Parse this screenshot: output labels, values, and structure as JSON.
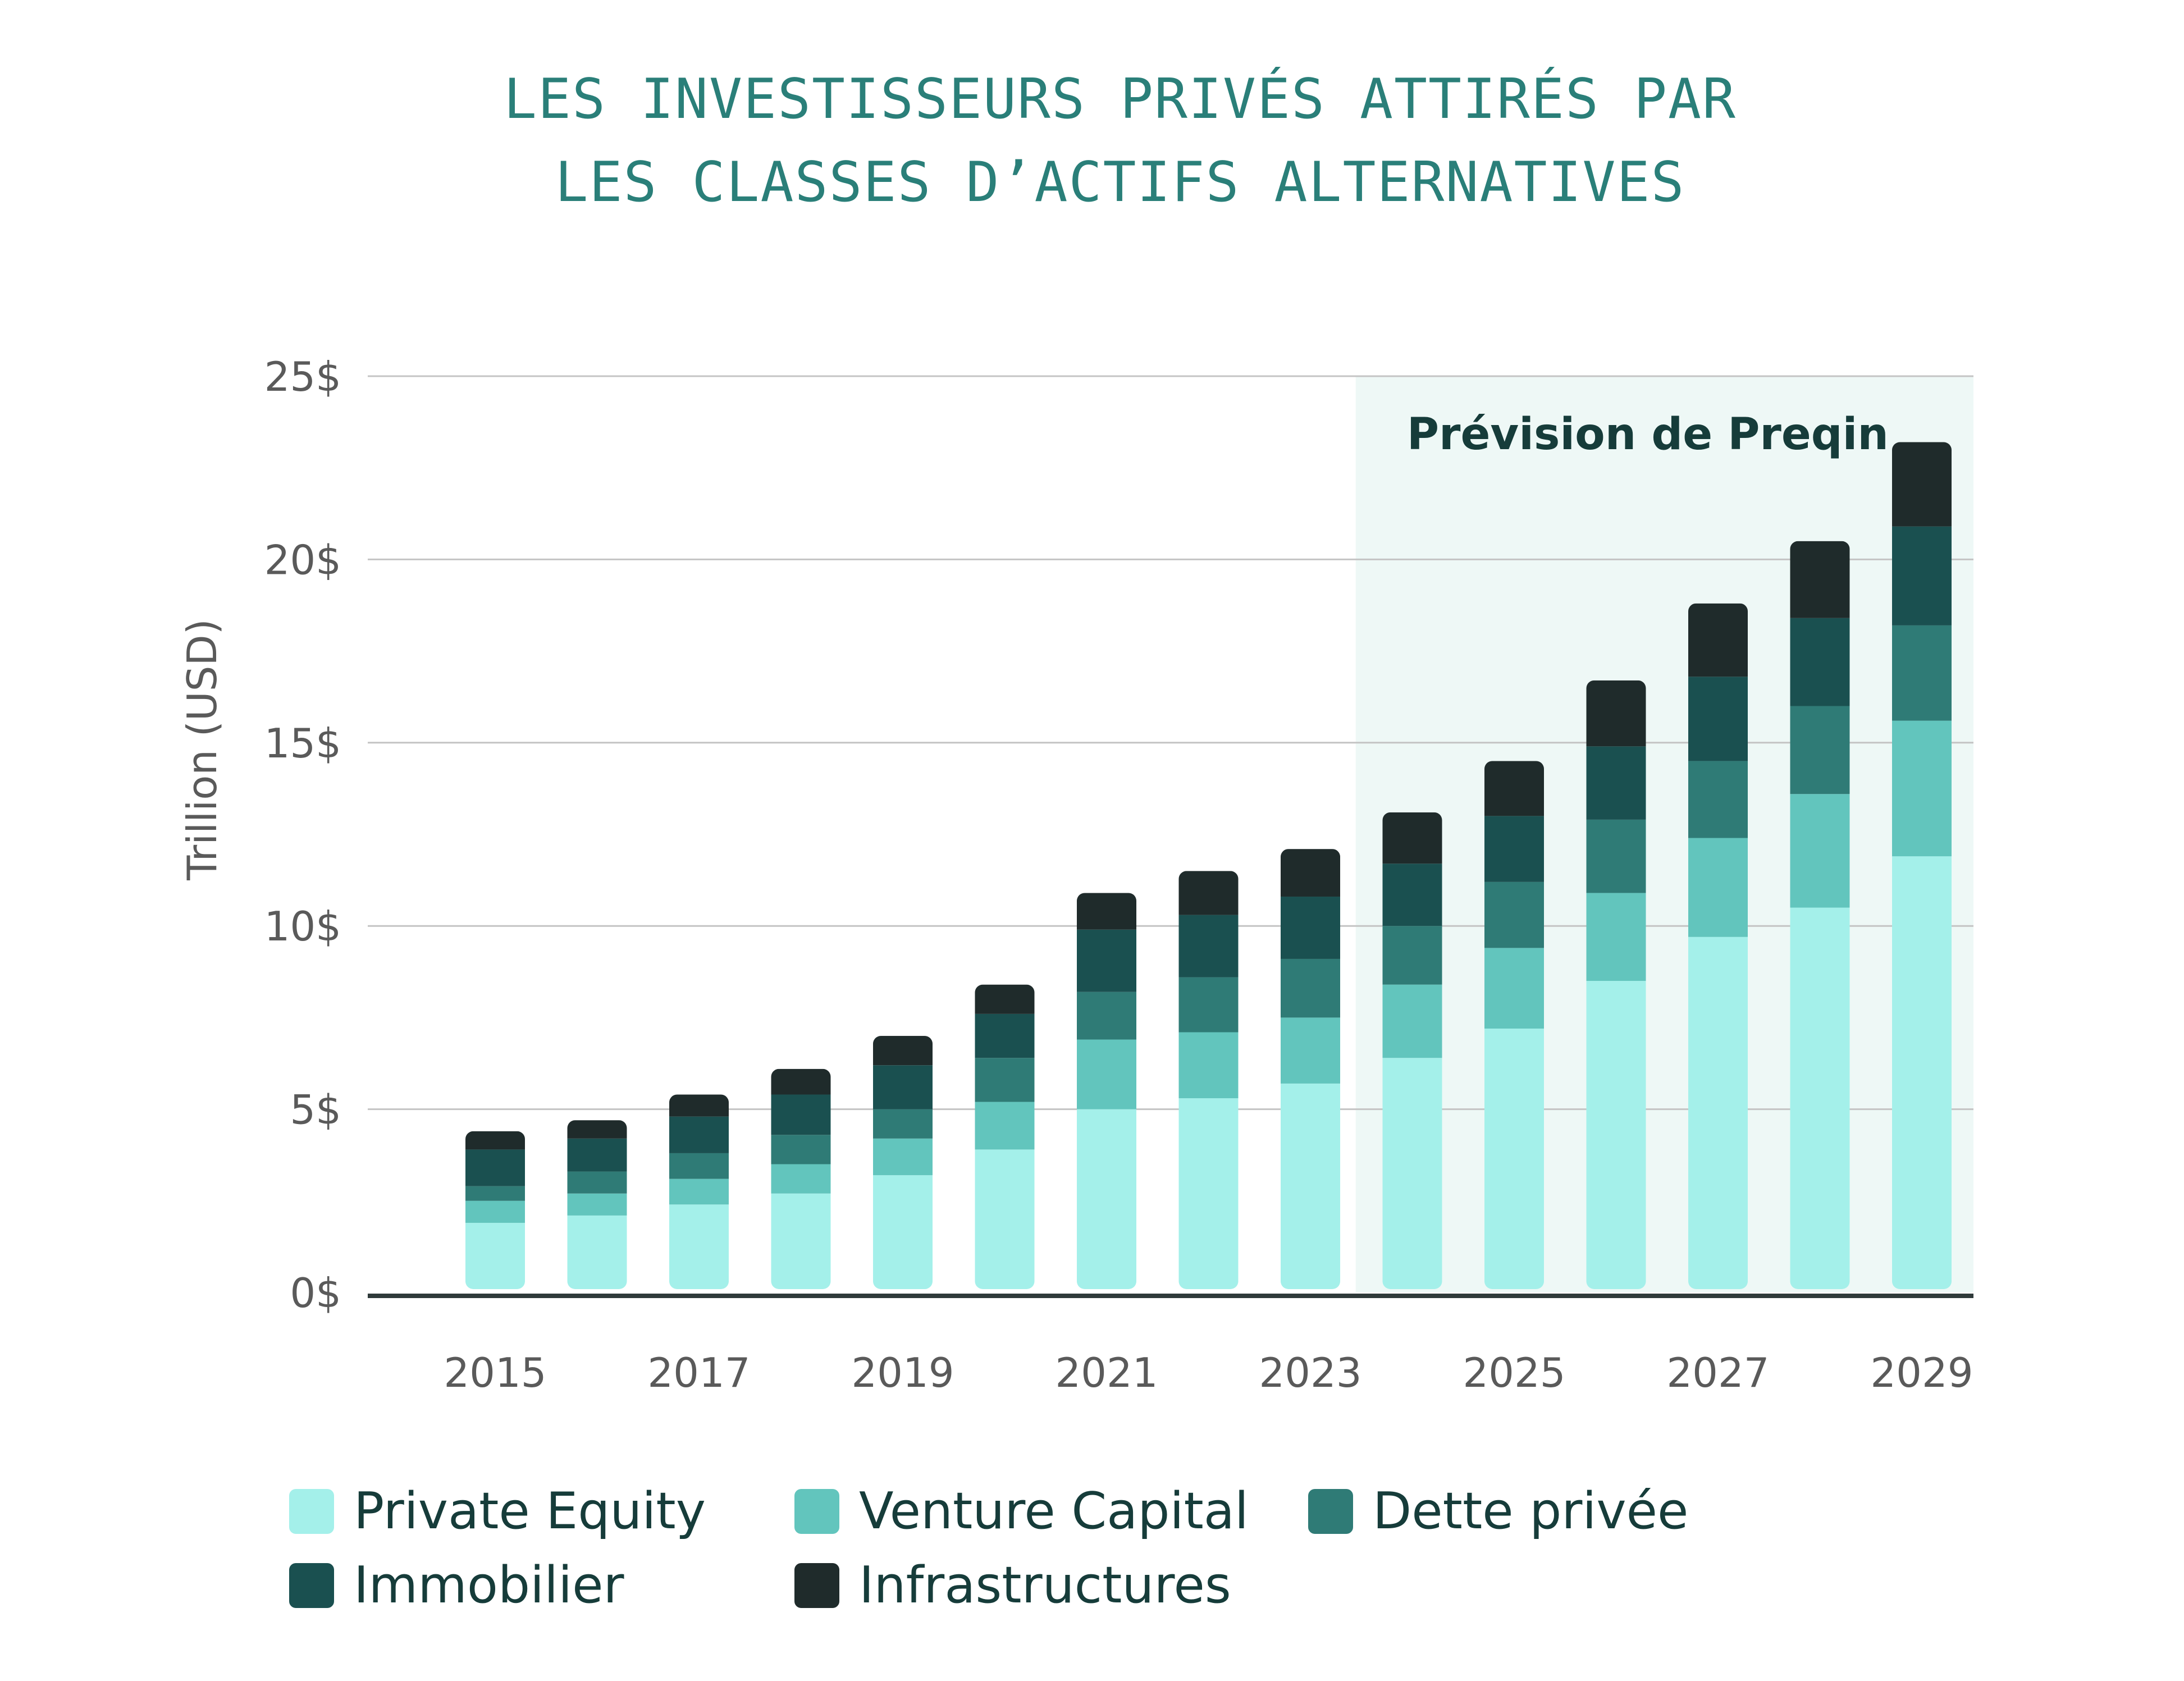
{
  "chart_data": {
    "type": "bar",
    "stacked": true,
    "title": [
      "LES INVESTISSEURS PRIVÉS ATTIRÉS PAR",
      "LES CLASSES D’ACTIFS ALTERNATIVES"
    ],
    "ylabel": "Trillion (USD)",
    "ylim": [
      0,
      25
    ],
    "yticks": [
      "0$",
      "5$",
      "10$",
      "15$",
      "20$",
      "25$"
    ],
    "ytick_values": [
      0,
      5,
      10,
      15,
      20,
      25
    ],
    "grid": true,
    "categories": [
      2015,
      2016,
      2017,
      2018,
      2019,
      2020,
      2021,
      2022,
      2023,
      2024,
      2025,
      2026,
      2027,
      2028,
      2029
    ],
    "xtick_labels": [
      "2015",
      "2017",
      "2019",
      "2021",
      "2023",
      "2025",
      "2027",
      "2029"
    ],
    "forecast": {
      "label": "Prévision de Preqin",
      "from": 2024,
      "to": 2029
    },
    "legend_position": "bottom",
    "series": [
      {
        "name": "Private Equity",
        "color": "#a4f0ea",
        "values": [
          1.9,
          2.1,
          2.4,
          2.7,
          3.2,
          3.9,
          5.0,
          5.3,
          5.7,
          6.4,
          7.2,
          8.5,
          9.7,
          10.5,
          11.9
        ]
      },
      {
        "name": "Venture Capital",
        "color": "#62c5bd",
        "values": [
          0.6,
          0.6,
          0.7,
          0.8,
          1.0,
          1.3,
          1.9,
          1.8,
          1.8,
          2.0,
          2.2,
          2.4,
          2.7,
          3.1,
          3.7
        ]
      },
      {
        "name": "Dette privée",
        "color": "#2f7b76",
        "values": [
          0.4,
          0.6,
          0.7,
          0.8,
          0.8,
          1.2,
          1.3,
          1.5,
          1.6,
          1.6,
          1.8,
          2.0,
          2.1,
          2.4,
          2.6
        ]
      },
      {
        "name": "Immobilier",
        "color": "#1a5050",
        "values": [
          1.0,
          0.9,
          1.0,
          1.1,
          1.2,
          1.2,
          1.7,
          1.7,
          1.7,
          1.7,
          1.8,
          2.0,
          2.3,
          2.4,
          2.7
        ]
      },
      {
        "name": "Infrastructures",
        "color": "#1f2b2b",
        "values": [
          0.5,
          0.5,
          0.6,
          0.7,
          0.8,
          0.8,
          1.0,
          1.2,
          1.3,
          1.4,
          1.5,
          1.8,
          2.0,
          2.1,
          2.3
        ]
      }
    ]
  }
}
